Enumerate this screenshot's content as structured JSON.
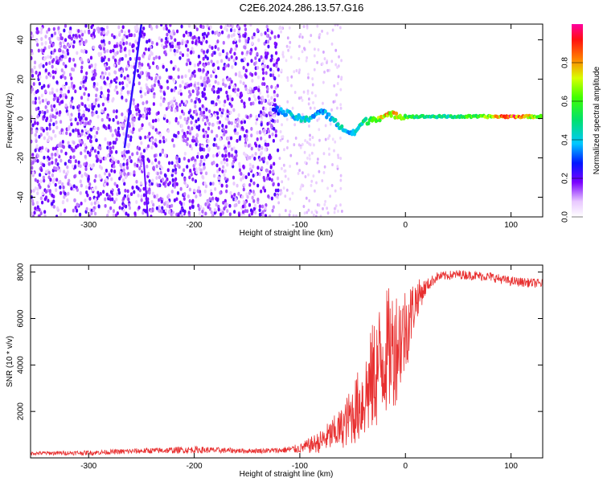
{
  "title": "C2E6.2024.286.13.57.G16",
  "chart_data": [
    {
      "type": "heatmap",
      "xlabel": "Height of straight line (km)",
      "ylabel": "Frequency (Hz)",
      "xlim": [
        -355,
        130
      ],
      "ylim": [
        -50,
        48
      ],
      "xticks": [
        -300,
        -200,
        -100,
        0,
        100
      ],
      "yticks": [
        -40,
        -20,
        0,
        20,
        40
      ],
      "colorbar": {
        "label": "Normalized spectral amplitude",
        "range": [
          0,
          1
        ],
        "ticks": [
          0.0,
          0.2,
          0.4,
          0.6,
          0.8
        ],
        "tick_labels": [
          "0.0",
          "0.2",
          "0.4",
          "0.6",
          "0.8"
        ]
      },
      "ridge": {
        "x": [
          -125,
          -110,
          -95,
          -80,
          -70,
          -60,
          -50,
          -40,
          -30,
          -20,
          -10,
          0,
          20,
          40,
          60,
          80,
          100,
          130
        ],
        "freq": [
          5,
          2,
          -1,
          4,
          0,
          -5,
          -8,
          -2,
          0,
          1,
          2,
          1,
          1,
          1,
          1,
          1,
          1,
          1
        ],
        "amplitude": [
          0.3,
          0.4,
          0.45,
          0.35,
          0.4,
          0.45,
          0.4,
          0.5,
          0.6,
          0.8,
          0.75,
          0.6,
          0.5,
          0.5,
          0.6,
          0.7,
          0.95,
          0.6
        ]
      }
    },
    {
      "type": "line",
      "xlabel": "Height of straight line (km)",
      "ylabel": "SNR (10 * v/v)",
      "xlim": [
        -355,
        130
      ],
      "ylim": [
        0,
        8300
      ],
      "xticks": [
        -300,
        -200,
        -100,
        0,
        100
      ],
      "yticks": [
        2000,
        4000,
        6000,
        8000
      ],
      "series": [
        {
          "color": "#e83030",
          "envelope": {
            "x": [
              -355,
              -300,
              -250,
              -200,
              -150,
              -120,
              -100,
              -80,
              -60,
              -40,
              -30,
              -20,
              -10,
              0,
              10,
              20,
              30,
              50,
              80,
              100,
              130
            ],
            "mean": [
              200,
              220,
              300,
              350,
              300,
              320,
              400,
              700,
              1300,
              2500,
              3500,
              4500,
              4800,
              5500,
              6800,
              7400,
              7800,
              7900,
              7800,
              7600,
              7500
            ],
            "spread": [
              80,
              100,
              120,
              150,
              100,
              120,
              200,
              500,
              900,
              1800,
              2500,
              2800,
              2600,
              2000,
              900,
              300,
              200,
              200,
              200,
              200,
              200
            ]
          }
        }
      ]
    }
  ]
}
